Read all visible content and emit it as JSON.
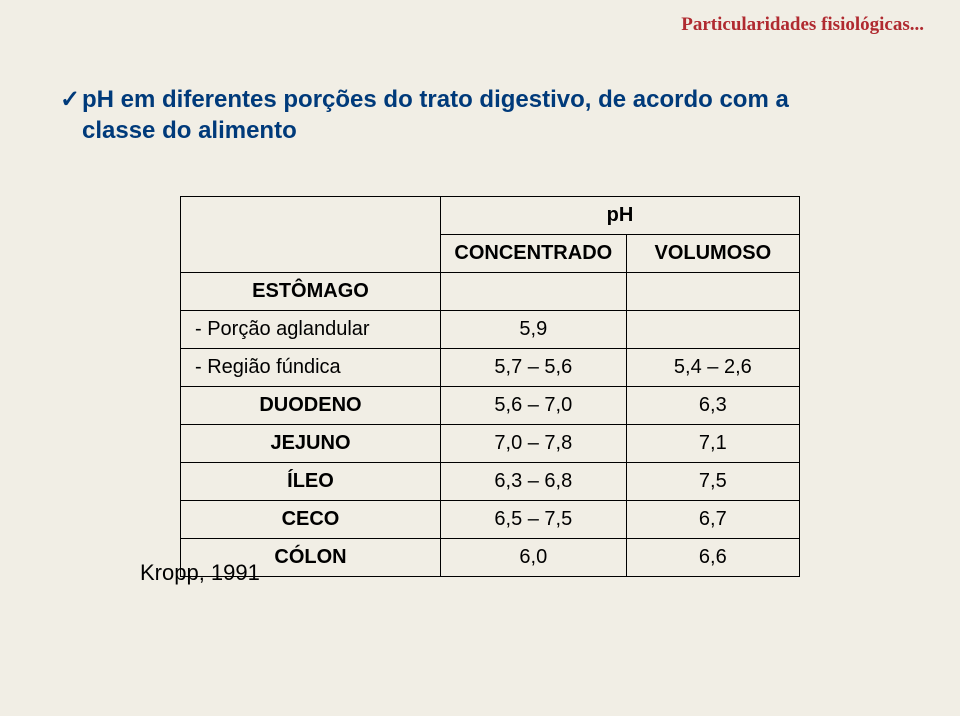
{
  "header": "Particularidades fisiológicas...",
  "subtitle_line1": "pH em diferentes porções do trato digestivo, de acordo com a",
  "subtitle_line2": "classe do alimento",
  "checkmark": "✓",
  "table": {
    "ph_header": "pH",
    "col_conc": "CONCENTRADO",
    "col_vol": "VOLUMOSO",
    "rows": [
      {
        "label": "ESTÔMAGO",
        "center": true,
        "conc": "",
        "vol": ""
      },
      {
        "label": "- Porção aglandular",
        "center": false,
        "conc": "5,9",
        "vol": ""
      },
      {
        "label": "- Região fúndica",
        "center": false,
        "conc": "5,7 – 5,6",
        "vol": "5,4 – 2,6"
      },
      {
        "label": "DUODENO",
        "center": true,
        "conc": "5,6 – 7,0",
        "vol": "6,3"
      },
      {
        "label": "JEJUNO",
        "center": true,
        "conc": "7,0 – 7,8",
        "vol": "7,1"
      },
      {
        "label": "ÍLEO",
        "center": true,
        "conc": "6,3 – 6,8",
        "vol": "7,5"
      },
      {
        "label": "CECO",
        "center": true,
        "conc": "6,5 – 7,5",
        "vol": "6,7"
      },
      {
        "label": "CÓLON",
        "center": true,
        "conc": "6,0",
        "vol": "6,6"
      }
    ]
  },
  "citation": "Kropp, 1991"
}
